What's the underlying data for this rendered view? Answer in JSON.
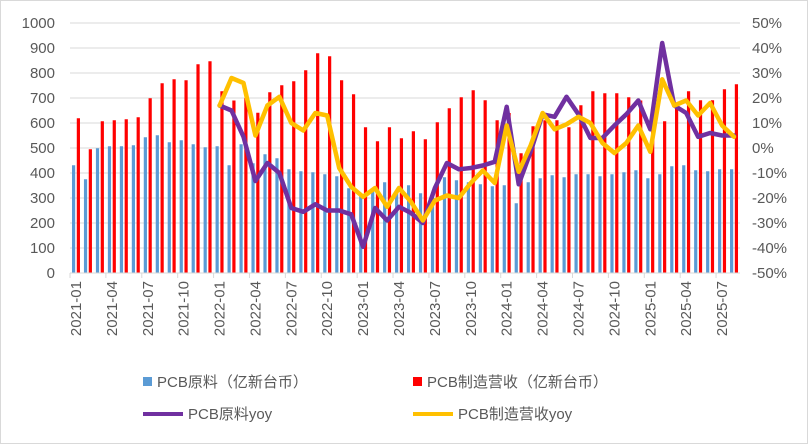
{
  "chart_data": {
    "type": "bar+line",
    "title": "",
    "categories": [
      "2021-01",
      "2021-02",
      "2021-03",
      "2021-04",
      "2021-05",
      "2021-06",
      "2021-07",
      "2021-08",
      "2021-09",
      "2021-10",
      "2021-11",
      "2021-12",
      "2022-01",
      "2022-02",
      "2022-03",
      "2022-04",
      "2022-05",
      "2022-06",
      "2022-07",
      "2022-08",
      "2022-09",
      "2022-10",
      "2022-11",
      "2022-12",
      "2023-01",
      "2023-02",
      "2023-03",
      "2023-04",
      "2023-05",
      "2023-06",
      "2023-07",
      "2023-08",
      "2023-09",
      "2023-10",
      "2023-11",
      "2023-12",
      "2024-01",
      "2024-02",
      "2024-03",
      "2024-04",
      "2024-05",
      "2024-06",
      "2024-07",
      "2024-08",
      "2024-09",
      "2024-10",
      "2024-11",
      "2024-12",
      "2025-01",
      "2025-02",
      "2025-03",
      "2025-04",
      "2025-05",
      "2025-06",
      "2025-07",
      "2025-08"
    ],
    "x_tick_labels": [
      "2021-01",
      "2021-04",
      "2021-07",
      "2021-10",
      "2022-01",
      "2022-04",
      "2022-07",
      "2022-10",
      "2023-01",
      "2023-04",
      "2023-07",
      "2023-10",
      "2024-01",
      "2024-04",
      "2024-07",
      "2024-10",
      "2025-01",
      "2025-04",
      "2025-07"
    ],
    "y_left": {
      "min": 0,
      "max": 1000,
      "step": 100,
      "ticks": [
        "0",
        "100",
        "200",
        "300",
        "400",
        "500",
        "600",
        "700",
        "800",
        "900",
        "1000"
      ]
    },
    "y_right": {
      "min": -50,
      "max": 50,
      "step": 10,
      "ticks": [
        "-50%",
        "-40%",
        "-30%",
        "-20%",
        "-10%",
        "0%",
        "10%",
        "20%",
        "30%",
        "40%",
        "50%"
      ]
    },
    "grid": true,
    "legend_position": "bottom",
    "series": [
      {
        "name": "PCB原料（亿新台币）",
        "type": "bar",
        "axis": "left",
        "color": "#5b9bd5",
        "values": [
          431,
          375,
          499,
          507,
          507,
          511,
          543,
          551,
          523,
          531,
          515,
          503,
          507,
          431,
          515,
          439,
          475,
          459,
          415,
          407,
          403,
          395,
          387,
          339,
          310,
          330,
          363,
          330,
          351,
          319,
          300,
          383,
          371,
          363,
          355,
          347,
          351,
          279,
          363,
          379,
          391,
          383,
          395,
          395,
          387,
          395,
          403,
          411,
          379,
          395,
          427,
          431,
          411,
          407,
          415,
          415
        ]
      },
      {
        "name": "PCB制造营收（亿新台币）",
        "type": "bar",
        "axis": "left",
        "color": "#ff0000",
        "values": [
          619,
          495,
          607,
          611,
          615,
          623,
          699,
          759,
          775,
          771,
          835,
          847,
          727,
          690,
          700,
          641,
          723,
          751,
          767,
          811,
          879,
          867,
          771,
          715,
          583,
          527,
          583,
          539,
          567,
          535,
          603,
          659,
          703,
          731,
          691,
          611,
          640,
          479,
          587,
          611,
          611,
          583,
          671,
          727,
          719,
          719,
          703,
          690,
          620,
          607,
          680,
          727,
          691,
          691,
          735,
          755
        ]
      },
      {
        "name": "PCB原料yoy",
        "type": "line",
        "axis": "right",
        "color": "#7030a0",
        "values": [
          null,
          null,
          null,
          null,
          null,
          null,
          null,
          null,
          null,
          null,
          null,
          null,
          17,
          15,
          4.5,
          -13.2,
          -6,
          -10,
          -24,
          -25.5,
          -22.5,
          -25,
          -25,
          -26.5,
          -39.5,
          -24,
          -29,
          -23.5,
          -26,
          -30,
          -16,
          -6,
          -8.5,
          -8,
          -7,
          -5.5,
          16.5,
          -14.5,
          -1.5,
          13.5,
          12.5,
          20.5,
          13.5,
          4,
          4,
          9,
          13.5,
          19,
          7.5,
          42,
          17,
          14,
          4.5,
          6,
          5,
          5
        ]
      },
      {
        "name": "PCB制造营收yoy",
        "type": "line",
        "axis": "right",
        "color": "#ffc000",
        "values": [
          null,
          null,
          null,
          null,
          null,
          null,
          null,
          null,
          null,
          null,
          null,
          null,
          17,
          28,
          26,
          5,
          17,
          20.5,
          10,
          7,
          14,
          13,
          -8,
          -15.5,
          -19.5,
          -16,
          -23.5,
          -16,
          -21.5,
          -29,
          -21,
          -19,
          -20,
          -14,
          -9,
          -14,
          9,
          -9.5,
          1,
          14,
          7.5,
          9.5,
          12.5,
          10,
          2,
          -2,
          2,
          9,
          -1.5,
          27.5,
          17,
          19,
          13,
          18,
          9,
          4.5
        ]
      }
    ]
  }
}
